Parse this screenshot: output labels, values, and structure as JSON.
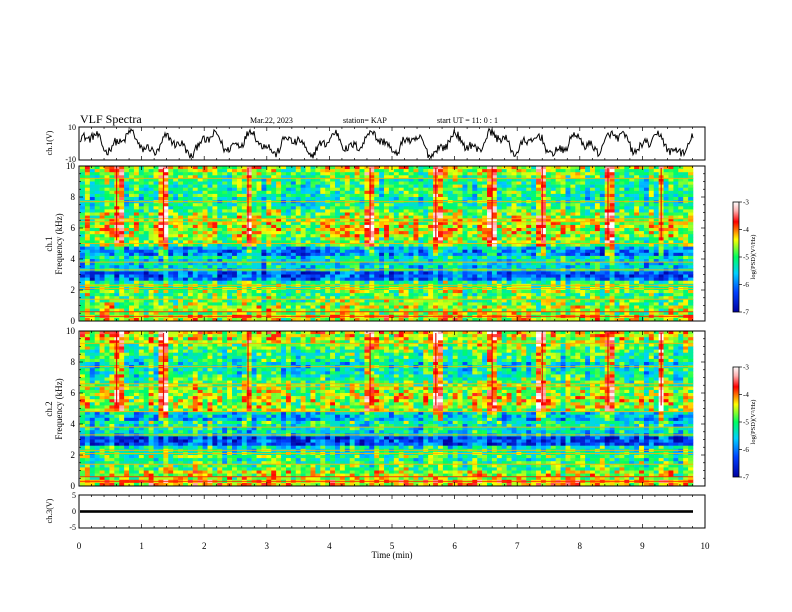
{
  "header": {
    "title": "VLF Spectra",
    "date": "Mar.22, 2023",
    "station": "station= KAP",
    "start": "start  UT =   11: 0  : 1"
  },
  "chart_data": [
    {
      "type": "line",
      "panel": "ch1-waveform",
      "ylabel": "ch.1(V)",
      "ylim": [
        -10,
        10
      ],
      "ytick_labels": [
        "10",
        "-10"
      ],
      "xlim": [
        0,
        10
      ],
      "color": "#000000"
    },
    {
      "type": "heatmap",
      "panel": "ch1-spectrogram",
      "ylabel": [
        "ch.1",
        "Frequency (kHz)"
      ],
      "ylim": [
        0,
        10
      ],
      "yticks": [
        0,
        2,
        4,
        6,
        8,
        10
      ],
      "ytick_labels": [
        "0",
        "2",
        "4",
        "6",
        "8",
        "10"
      ],
      "xlim": [
        0,
        10
      ],
      "colorbar": {
        "label": "log(PSD)(V²/Hz)",
        "range": [
          -7,
          -3
        ],
        "ticks": [
          "-3",
          "-4",
          "-5",
          "-6",
          "-7"
        ]
      },
      "horizontal_lines_khz": [
        0.3,
        0.6,
        1.4,
        2.1,
        2.3,
        3.3,
        3.8,
        5.0,
        6.4,
        6.6,
        7.7,
        9.2
      ],
      "vertical_streaks_min": [
        0.6,
        1.35,
        2.7,
        4.65,
        5.7,
        6.6,
        7.4,
        8.45,
        9.3
      ]
    },
    {
      "type": "heatmap",
      "panel": "ch2-spectrogram",
      "ylabel": [
        "ch.2",
        "Frequency (kHz)"
      ],
      "ylim": [
        0,
        10
      ],
      "yticks": [
        0,
        2,
        4,
        6,
        8,
        10
      ],
      "ytick_labels": [
        "0",
        "2",
        "4",
        "6",
        "8",
        "10"
      ],
      "xlim": [
        0,
        10
      ],
      "colorbar": {
        "label": "log(PSD)(V²/Hz)",
        "range": [
          -7,
          -3
        ],
        "ticks": [
          "-3",
          "-4",
          "-5",
          "-6",
          "-7"
        ]
      },
      "horizontal_lines_khz": [
        0.3,
        0.6,
        1.4,
        2.1,
        2.3,
        3.3,
        3.8,
        4.8,
        6.4,
        6.6,
        7.7,
        9.2
      ],
      "vertical_streaks_min": [
        0.6,
        1.35,
        2.7,
        4.65,
        5.7,
        6.6,
        7.4,
        8.45,
        9.3
      ]
    },
    {
      "type": "line",
      "panel": "ch3-waveform",
      "ylabel": "ch.3(V)",
      "ylim": [
        -5,
        5
      ],
      "ytick_labels": [
        "5",
        "0",
        "-5"
      ],
      "xlim": [
        0,
        10
      ],
      "level_range": [
        -0.4,
        0.4
      ],
      "xlabel": "Time (min)",
      "xticks": [
        0,
        1,
        2,
        3,
        4,
        5,
        6,
        7,
        8,
        9,
        10
      ],
      "xtick_labels": [
        "0",
        "1",
        "2",
        "3",
        "4",
        "5",
        "6",
        "7",
        "8",
        "9",
        "10"
      ]
    }
  ]
}
